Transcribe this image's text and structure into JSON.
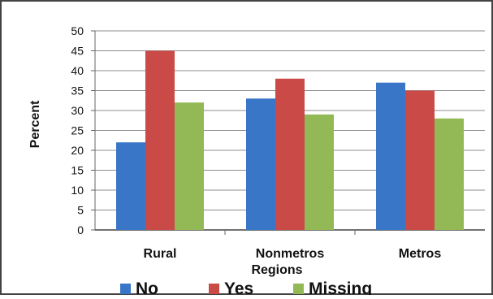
{
  "chart_data": {
    "type": "bar",
    "title": "",
    "xlabel": "Regions",
    "ylabel": "Percent",
    "ylim": [
      0,
      50
    ],
    "yticks": [
      0,
      5,
      10,
      15,
      20,
      25,
      30,
      35,
      40,
      45,
      50
    ],
    "categories": [
      "Rural",
      "Nonmetros",
      "Metros"
    ],
    "series": [
      {
        "name": "No",
        "values": [
          22,
          33,
          37
        ],
        "color": "#3a76c8"
      },
      {
        "name": "Yes",
        "values": [
          45,
          38,
          35
        ],
        "color": "#c94a47"
      },
      {
        "name": "Missing",
        "values": [
          32,
          29,
          28
        ],
        "color": "#92b955"
      }
    ],
    "grid": true,
    "legend_position": "bottom"
  }
}
